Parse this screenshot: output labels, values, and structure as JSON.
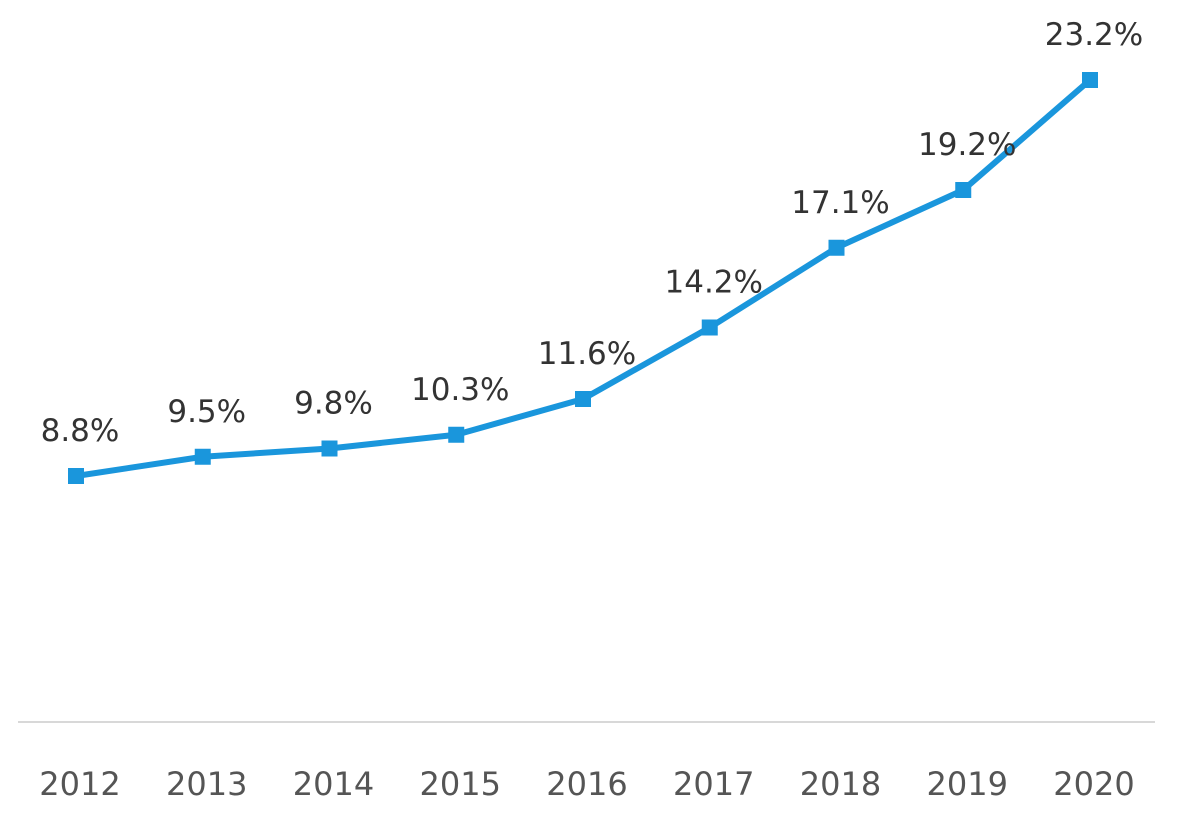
{
  "chart_data": {
    "type": "line",
    "categories": [
      "2012",
      "2013",
      "2014",
      "2015",
      "2016",
      "2017",
      "2018",
      "2019",
      "2020"
    ],
    "series": [
      {
        "values": [
          8.8,
          9.5,
          9.8,
          10.3,
          11.6,
          14.2,
          17.1,
          19.2,
          23.2
        ],
        "labels": [
          "8.8%",
          "9.5%",
          "9.8%",
          "10.3%",
          "11.6%",
          "14.2%",
          "17.1%",
          "19.2%",
          "23.2%"
        ],
        "color": "#1a96dc",
        "marker": "square"
      }
    ],
    "ylim": [
      0,
      25
    ],
    "grid": false,
    "legend": "none",
    "axis_color": "#cccccc",
    "label_color": "#333333"
  }
}
